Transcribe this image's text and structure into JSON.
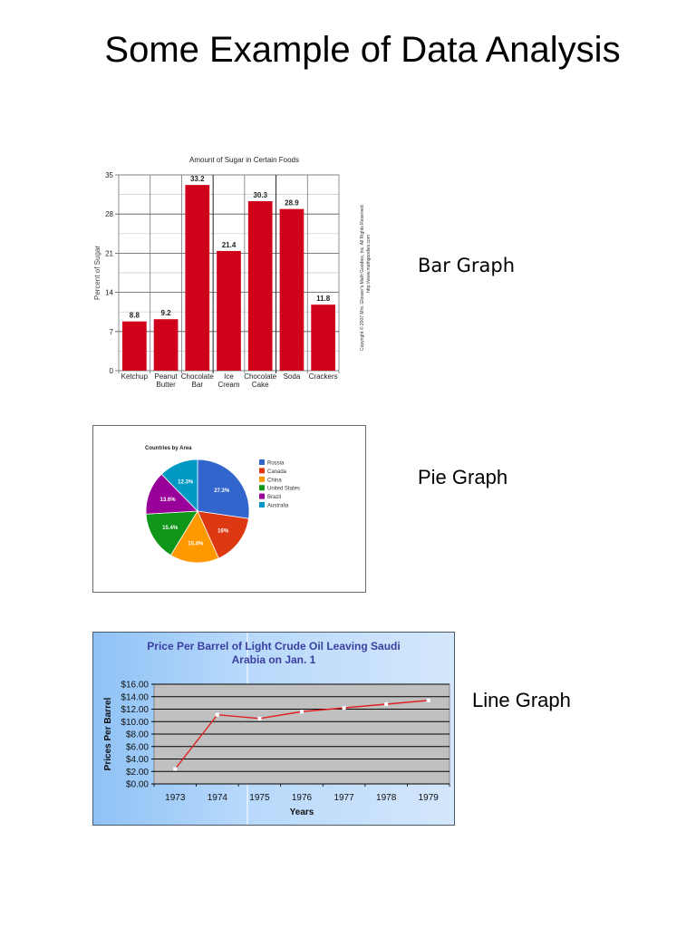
{
  "page": {
    "title": "Some Example of Data Analysis"
  },
  "labels": {
    "bar": "Bar Graph",
    "pie": "Pie Graph",
    "line": "Line Graph"
  },
  "bar_chart": {
    "title": "Amount of Sugar in Certain Foods",
    "ylabel": "Percent of Sugar",
    "copyright_line1": "Copyright © 2007 Mrs. Glosser's Math Goodies, Inc. All Rights Reserved.",
    "copyright_line2": "http://www.mathgoodies.com",
    "bar_color": "#d0021b"
  },
  "pie_chart": {
    "title": "Countries by Area"
  },
  "line_chart": {
    "title_line1": "Price Per Barrel of Light Crude Oil Leaving Saudi",
    "title_line2": "Arabia on Jan. 1",
    "ylabel": "Prices Per Barrel",
    "xlabel": "Years",
    "title_color": "#3a3fa0",
    "line_color": "#e02020"
  },
  "chart_data": [
    {
      "type": "bar",
      "title": "Amount of Sugar in Certain Foods",
      "xlabel": "",
      "ylabel": "Percent of Sugar",
      "categories": [
        [
          "Ketchup"
        ],
        [
          "Peanut",
          "Butter"
        ],
        [
          "Chocolate",
          "Bar"
        ],
        [
          "Ice",
          "Cream"
        ],
        [
          "Chocolate",
          "Cake"
        ],
        [
          "Soda"
        ],
        [
          "Crackers"
        ]
      ],
      "category_names": [
        "Ketchup",
        "Peanut Butter",
        "Chocolate Bar",
        "Ice Cream",
        "Chocolate Cake",
        "Soda",
        "Crackers"
      ],
      "values": [
        8.8,
        9.2,
        33.2,
        21.4,
        30.3,
        28.9,
        11.8
      ],
      "value_labels": [
        "8.8",
        "9.2",
        "33.2",
        "21.4",
        "30.3",
        "28.9",
        "11.8"
      ],
      "ylim": [
        0,
        35
      ],
      "yticks": [
        0,
        7,
        14,
        21,
        28,
        35
      ],
      "grid": true,
      "color": "#d0021b"
    },
    {
      "type": "pie",
      "title": "Countries by Area",
      "categories": [
        "Russia",
        "Canada",
        "China",
        "United States",
        "Brazil",
        "Australia"
      ],
      "values": [
        27.3,
        16,
        15.4,
        15.4,
        13.6,
        12.3
      ],
      "value_labels": [
        "27.3%",
        "16%",
        "15.4%",
        "15.4%",
        "13.6%",
        "12.3%"
      ],
      "colors": [
        "#3366cc",
        "#dc3912",
        "#ff9900",
        "#109618",
        "#990099",
        "#0099c6"
      ],
      "legend_position": "right"
    },
    {
      "type": "line",
      "title": "Price Per Barrel of Light Crude Oil Leaving Saudi Arabia on Jan. 1",
      "xlabel": "Years",
      "ylabel": "Prices Per Barrel",
      "x": [
        "1973",
        "1974",
        "1975",
        "1976",
        "1977",
        "1978",
        "1979"
      ],
      "values": [
        2.4,
        11.1,
        10.5,
        11.6,
        12.2,
        12.8,
        13.4
      ],
      "ylim": [
        0,
        16
      ],
      "yticks": [
        "$0.00",
        "$2.00",
        "$4.00",
        "$6.00",
        "$8.00",
        "$10.00",
        "$12.00",
        "$14.00",
        "$16.00"
      ],
      "grid": true,
      "color": "#e02020"
    }
  ]
}
